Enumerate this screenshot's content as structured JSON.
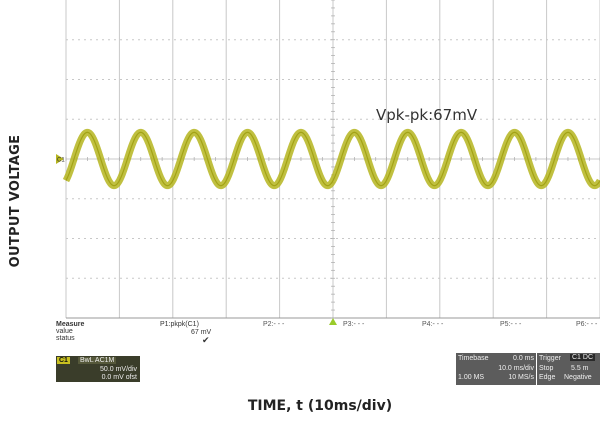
{
  "chart_data": {
    "type": "line",
    "xlabel": "TIME, t (10ms/div)",
    "ylabel": "OUTPUT VOLTAGE",
    "annotation": "Vpk-pk:67mV",
    "grid": true,
    "x_divisions": 10,
    "y_divisions": 8,
    "xlim": [
      0,
      100
    ],
    "ylim": [
      -200,
      200
    ],
    "series": [
      {
        "color": "#b5b51e",
        "waveform": "sine",
        "period_ms": 10,
        "amplitude_mVpp": 67,
        "offset_mV": 0
      }
    ],
    "ground_marker": "C1"
  },
  "measure": {
    "title": "Measure",
    "row_value": "value",
    "row_status": "status",
    "p1_label": "P1:pkpk(C1)",
    "p1_value": "67 mV",
    "p1_status": "✔",
    "slots": [
      "P2:- - -",
      "P3:- - -",
      "P4:- - -",
      "P5:- - -",
      "P6:- - -"
    ]
  },
  "channel": {
    "tag": "C1",
    "coupling": "BwL  AC1M",
    "vdiv": "50.0 mV/div",
    "offset": "0.0 mV ofst"
  },
  "timebase": {
    "title": "Timebase",
    "delay": "0.0 ms",
    "tdiv": "10.0 ms/div",
    "samples": "1.00 MS",
    "rate": "10 MS/s"
  },
  "trigger": {
    "title": "Trigger",
    "source": "C1 DC",
    "mode": "Stop",
    "level": "5.5 m",
    "type": "Edge",
    "slope": "Negative"
  },
  "colors": {
    "trace": "#b5b51e",
    "grid": "#c8c8c8",
    "trigger_marker": "#9acb2a"
  }
}
